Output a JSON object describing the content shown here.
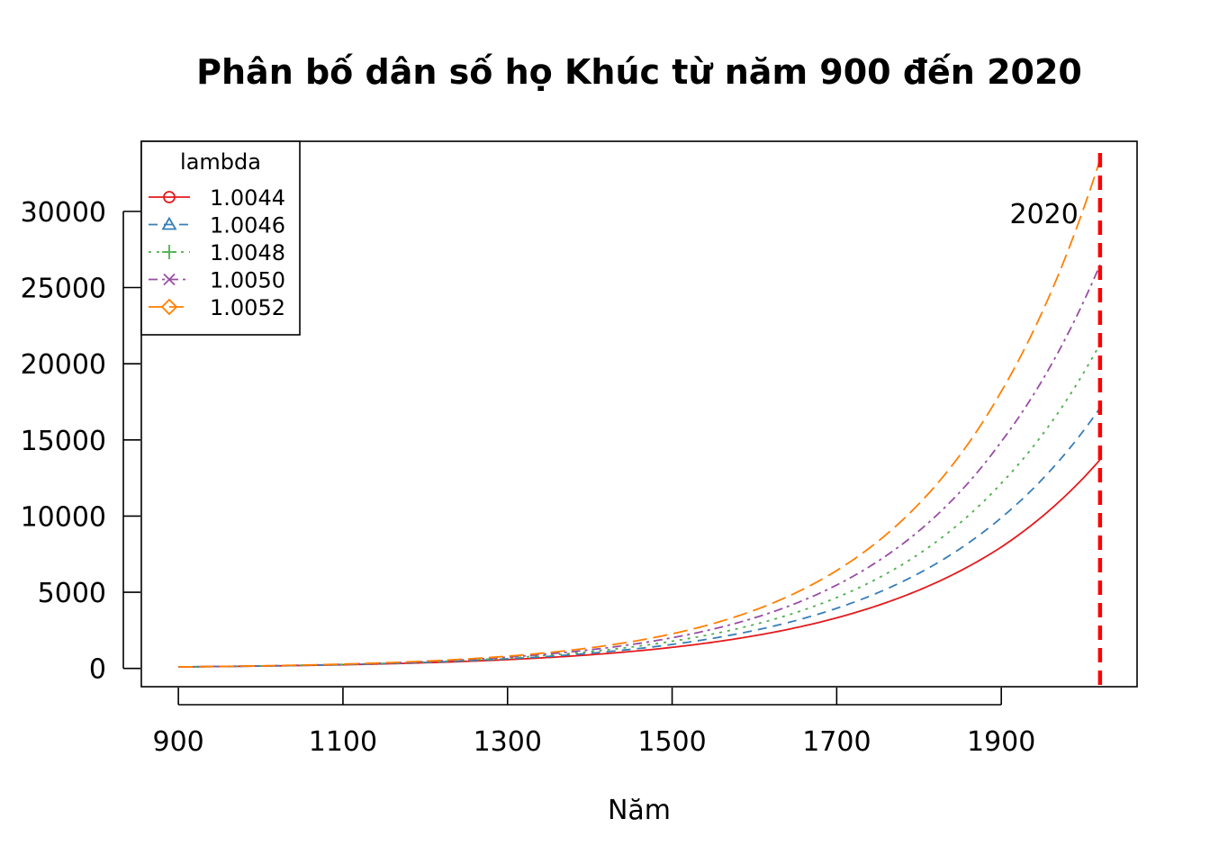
{
  "chart_data": {
    "type": "line",
    "title": "Phân bố dân số họ Khúc từ năm 900 đến 2020",
    "xlabel": "Năm",
    "ylabel": "",
    "xlim": [
      855,
      2065
    ],
    "ylim": [
      -1200,
      34600
    ],
    "x_ticks": [
      900,
      1100,
      1300,
      1500,
      1700,
      1900
    ],
    "y_ticks": [
      0,
      5000,
      10000,
      15000,
      20000,
      25000,
      30000
    ],
    "x_start": 900,
    "x_end": 2020,
    "legend": {
      "title": "lambda",
      "position": "top-left"
    },
    "series": [
      {
        "name": "1.0044",
        "color": "#E41A1C",
        "dash": "",
        "marker": "circle",
        "points": [
          [
            900,
            100
          ],
          [
            1000,
            155
          ],
          [
            1100,
            240
          ],
          [
            1200,
            372
          ],
          [
            1300,
            577
          ],
          [
            1400,
            893
          ],
          [
            1500,
            1383
          ],
          [
            1600,
            2143
          ],
          [
            1700,
            3320
          ],
          [
            1800,
            5142
          ],
          [
            1900,
            7965
          ],
          [
            2020,
            13700
          ]
        ]
      },
      {
        "name": "1.0046",
        "color": "#377EB8",
        "dash": "10,7",
        "marker": "triangle",
        "points": [
          [
            900,
            100
          ],
          [
            1000,
            158
          ],
          [
            1100,
            251
          ],
          [
            1200,
            397
          ],
          [
            1300,
            629
          ],
          [
            1400,
            995
          ],
          [
            1500,
            1575
          ],
          [
            1600,
            2494
          ],
          [
            1700,
            3947
          ],
          [
            1800,
            6248
          ],
          [
            1900,
            9892
          ],
          [
            2020,
            17100
          ]
        ]
      },
      {
        "name": "1.0048",
        "color": "#4DAF4A",
        "dash": "3,6",
        "marker": "plus",
        "points": [
          [
            900,
            100
          ],
          [
            1000,
            162
          ],
          [
            1100,
            261
          ],
          [
            1200,
            422
          ],
          [
            1300,
            682
          ],
          [
            1400,
            1102
          ],
          [
            1500,
            1781
          ],
          [
            1600,
            2879
          ],
          [
            1700,
            4652
          ],
          [
            1800,
            7517
          ],
          [
            1900,
            12148
          ],
          [
            2020,
            21300
          ]
        ]
      },
      {
        "name": "1.0050",
        "color": "#984EA3",
        "dash": "10,5,3,5",
        "marker": "cross",
        "points": [
          [
            900,
            100
          ],
          [
            1000,
            165
          ],
          [
            1100,
            272
          ],
          [
            1200,
            449
          ],
          [
            1300,
            740
          ],
          [
            1400,
            1220
          ],
          [
            1500,
            2013
          ],
          [
            1600,
            3319
          ],
          [
            1700,
            5474
          ],
          [
            1800,
            9029
          ],
          [
            1900,
            14888
          ],
          [
            2020,
            26500
          ]
        ]
      },
      {
        "name": "1.0052",
        "color": "#FF7F00",
        "dash": "16,7",
        "marker": "diamond",
        "points": [
          [
            900,
            100
          ],
          [
            1000,
            168
          ],
          [
            1100,
            283
          ],
          [
            1200,
            477
          ],
          [
            1300,
            803
          ],
          [
            1400,
            1350
          ],
          [
            1500,
            2271
          ],
          [
            1600,
            3820
          ],
          [
            1700,
            6425
          ],
          [
            1800,
            10808
          ],
          [
            1900,
            18180
          ],
          [
            2020,
            33400
          ]
        ]
      }
    ],
    "vline": {
      "x": 2020,
      "color": "#FF0000",
      "label": "2020"
    },
    "grid": false
  }
}
